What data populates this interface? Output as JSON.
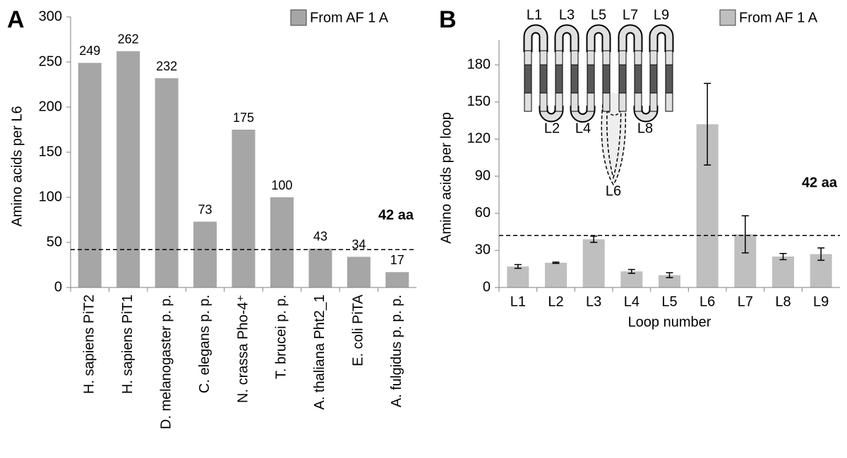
{
  "chart_data": [
    {
      "type": "bar",
      "panel": "A",
      "y_label": "Amino acids per L6",
      "categories": [
        "H. sapiens PiT2",
        "H. sapiens PiT1",
        "D. melanogaster p. p.",
        "C. elegans p. p.",
        "N. crassa Pho-4⁺",
        "T. brucei p. p.",
        "A. thaliana Pht2_1",
        "E. coli PiTA",
        "A. fulgidus p. p. p."
      ],
      "series": [
        {
          "name": "From AF 1 A",
          "color": "#a6a6a6",
          "values": [
            249,
            262,
            232,
            73,
            175,
            100,
            43,
            34,
            17
          ]
        }
      ],
      "ylim": [
        0,
        300
      ],
      "yticks": [
        0,
        50,
        100,
        150,
        200,
        250,
        300
      ],
      "grid": false,
      "legend": "top-right",
      "reference_line": {
        "value": 42,
        "label": "42 aa"
      }
    },
    {
      "type": "bar",
      "panel": "B",
      "y_label": "Amino acids per loop",
      "x_label": "Loop number",
      "categories": [
        "L1",
        "L2",
        "L3",
        "L4",
        "L5",
        "L6",
        "L7",
        "L8",
        "L9"
      ],
      "series": [
        {
          "name": "From AF 1 A",
          "color": "#bfbfbf",
          "values": [
            17,
            20,
            39,
            13,
            10,
            132,
            43,
            25,
            27
          ],
          "errors": [
            1.5,
            0.5,
            2.5,
            1.5,
            2,
            33,
            15,
            2.5,
            5
          ]
        }
      ],
      "ylim": [
        0,
        200
      ],
      "yticks": [
        0,
        30,
        60,
        90,
        120,
        150,
        180
      ],
      "grid": false,
      "legend": "top-right",
      "reference_line": {
        "value": 42,
        "label": "42 aa"
      },
      "inset": {
        "labels": [
          "L1",
          "L3",
          "L5",
          "L7",
          "L9",
          "L2",
          "L4",
          "L8",
          "L6"
        ]
      }
    }
  ]
}
